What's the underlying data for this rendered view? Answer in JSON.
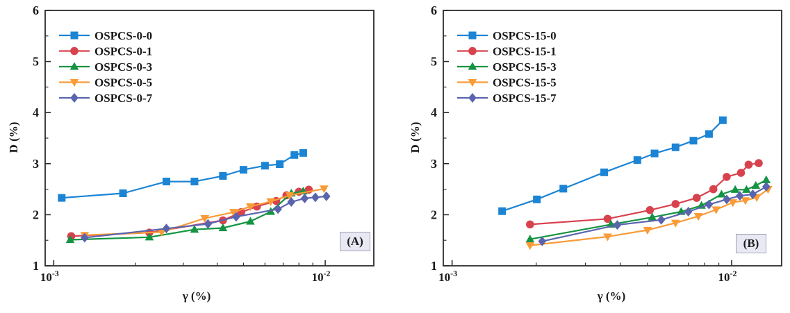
{
  "page": {
    "background": "#ffffff"
  },
  "chart_data": [
    {
      "type": "line",
      "panel_label": "(A)",
      "xlabel": "γ (%)",
      "ylabel": "D (%)",
      "xscale": "log",
      "xlim": [
        0.00093,
        0.0151
      ],
      "ylim": [
        1,
        6
      ],
      "y_major_ticks": [
        1,
        2,
        3,
        4,
        5,
        6
      ],
      "y_minor_step": 0.5,
      "x_major_ticks": [
        {
          "value": 0.001,
          "base": "10",
          "exp": "-3"
        },
        {
          "value": 0.01,
          "base": "10",
          "exp": "-2"
        }
      ],
      "x_minor_ticks": [
        0.002,
        0.003,
        0.004,
        0.005,
        0.006,
        0.007,
        0.008,
        0.009
      ],
      "grid": false,
      "legend_position": "top-left",
      "series": [
        {
          "name": "OSPCS-0-0",
          "color": "#1b84d4",
          "marker": "square",
          "x": [
            0.00107,
            0.0018,
            0.0026,
            0.0033,
            0.0042,
            0.005,
            0.006,
            0.0068,
            0.0077,
            0.0083
          ],
          "y": [
            2.33,
            2.42,
            2.65,
            2.65,
            2.76,
            2.88,
            2.96,
            2.99,
            3.17,
            3.21
          ]
        },
        {
          "name": "OSPCS-0-1",
          "color": "#d8424d",
          "marker": "circle",
          "x": [
            0.00116,
            0.00225,
            0.0042,
            0.0049,
            0.0056,
            0.0066,
            0.0072,
            0.008,
            0.0087
          ],
          "y": [
            1.58,
            1.65,
            1.89,
            2.05,
            2.16,
            2.27,
            2.38,
            2.45,
            2.49
          ]
        },
        {
          "name": "OSPCS-0-3",
          "color": "#149442",
          "marker": "triangle-up",
          "x": [
            0.00115,
            0.00225,
            0.0033,
            0.0042,
            0.0053,
            0.0063,
            0.0075,
            0.0083
          ],
          "y": [
            1.51,
            1.56,
            1.71,
            1.74,
            1.87,
            2.06,
            2.42,
            2.46
          ]
        },
        {
          "name": "OSPCS-0-5",
          "color": "#f99b37",
          "marker": "triangle-down",
          "x": [
            0.0013,
            0.0025,
            0.0036,
            0.0046,
            0.0053,
            0.0063,
            0.0074,
            0.0099
          ],
          "y": [
            1.6,
            1.66,
            1.93,
            2.05,
            2.16,
            2.26,
            2.38,
            2.51
          ]
        },
        {
          "name": "OSPCS-0-7",
          "color": "#5a64ae",
          "marker": "diamond",
          "x": [
            0.0013,
            0.0026,
            0.0037,
            0.0047,
            0.0067,
            0.0075,
            0.0084,
            0.0092,
            0.0101
          ],
          "y": [
            1.55,
            1.73,
            1.82,
            1.96,
            2.11,
            2.25,
            2.32,
            2.34,
            2.36
          ]
        }
      ]
    },
    {
      "type": "line",
      "panel_label": "(B)",
      "xlabel": "γ (%)",
      "ylabel": "D (%)",
      "xscale": "log",
      "xlim": [
        0.00093,
        0.0151
      ],
      "ylim": [
        1,
        6
      ],
      "y_major_ticks": [
        1,
        2,
        3,
        4,
        5,
        6
      ],
      "y_minor_step": 0.5,
      "x_major_ticks": [
        {
          "value": 0.001,
          "base": "10",
          "exp": "-3"
        },
        {
          "value": 0.01,
          "base": "10",
          "exp": "-2"
        }
      ],
      "x_minor_ticks": [
        0.002,
        0.003,
        0.004,
        0.005,
        0.006,
        0.007,
        0.008,
        0.009
      ],
      "grid": false,
      "legend_position": "top-left",
      "series": [
        {
          "name": "OSPCS-15-0",
          "color": "#1b84d4",
          "marker": "square",
          "x": [
            0.00151,
            0.00201,
            0.0025,
            0.0035,
            0.0046,
            0.0053,
            0.0063,
            0.0073,
            0.0083,
            0.0093
          ],
          "y": [
            2.07,
            2.3,
            2.51,
            2.83,
            3.07,
            3.2,
            3.32,
            3.45,
            3.58,
            3.85
          ]
        },
        {
          "name": "OSPCS-15-1",
          "color": "#d8424d",
          "marker": "circle",
          "x": [
            0.0019,
            0.0036,
            0.0051,
            0.0063,
            0.0075,
            0.0086,
            0.0096,
            0.0108,
            0.0115,
            0.0125
          ],
          "y": [
            1.81,
            1.92,
            2.09,
            2.21,
            2.33,
            2.5,
            2.74,
            2.82,
            2.98,
            3.01
          ]
        },
        {
          "name": "OSPCS-15-3",
          "color": "#149442",
          "marker": "triangle-up",
          "x": [
            0.0019,
            0.0037,
            0.0052,
            0.0066,
            0.0078,
            0.0092,
            0.0103,
            0.0113,
            0.0122,
            0.0133
          ],
          "y": [
            1.52,
            1.81,
            1.95,
            2.06,
            2.18,
            2.4,
            2.49,
            2.49,
            2.57,
            2.68
          ]
        },
        {
          "name": "OSPCS-15-5",
          "color": "#f99b37",
          "marker": "triangle-down",
          "x": [
            0.0019,
            0.0036,
            0.005,
            0.0063,
            0.0076,
            0.0088,
            0.0101,
            0.0112,
            0.0123,
            0.0135
          ],
          "y": [
            1.4,
            1.57,
            1.7,
            1.84,
            1.97,
            2.1,
            2.24,
            2.28,
            2.34,
            2.5
          ]
        },
        {
          "name": "OSPCS-15-7",
          "color": "#5a64ae",
          "marker": "diamond",
          "x": [
            0.0021,
            0.0039,
            0.0056,
            0.007,
            0.0083,
            0.0096,
            0.0107,
            0.0119,
            0.0133
          ],
          "y": [
            1.48,
            1.8,
            1.9,
            2.06,
            2.2,
            2.3,
            2.37,
            2.4,
            2.55
          ]
        }
      ]
    }
  ]
}
